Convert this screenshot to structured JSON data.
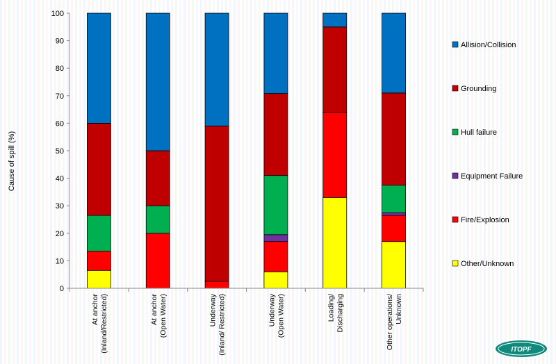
{
  "chart_data": {
    "type": "bar",
    "stacked": true,
    "ylabel": "Cause of spill (%)",
    "xlabel": "",
    "ylim": [
      0,
      100
    ],
    "yticks": [
      0,
      10,
      20,
      30,
      40,
      50,
      60,
      70,
      80,
      90,
      100
    ],
    "grid": false,
    "legend_position": "right",
    "categories": [
      [
        "At anchor",
        "(Inland/Restricted)"
      ],
      [
        "At anchor",
        "(Open Water)"
      ],
      [
        "Underway",
        "(Inland/ Restricted)"
      ],
      [
        "Underway",
        "(Open Water)"
      ],
      [
        "Loading/",
        "Discharging"
      ],
      [
        "Other operations/",
        "Unknown"
      ]
    ],
    "series": [
      {
        "name": "Other/Unknown",
        "color": "#ffff00",
        "values": [
          6.5,
          0,
          0,
          6,
          33,
          17
        ]
      },
      {
        "name": "Fire/Explosion",
        "color": "#ff0000",
        "values": [
          7,
          20,
          2.5,
          11,
          31,
          9.5
        ]
      },
      {
        "name": "Equipment Failure",
        "color": "#7030a0",
        "values": [
          0,
          0,
          0,
          2.5,
          0,
          1
        ]
      },
      {
        "name": "Hull failure",
        "color": "#00b050",
        "values": [
          13,
          10,
          0,
          21.5,
          0,
          10
        ]
      },
      {
        "name": "Grounding",
        "color": "#c00000",
        "values": [
          33.5,
          20,
          56.5,
          29.8,
          31,
          33.5
        ]
      },
      {
        "name": "Allision/Collision",
        "color": "#0070c0",
        "values": [
          40,
          50,
          41,
          29.2,
          5,
          29
        ]
      }
    ],
    "legend_order": [
      "Allision/Collision",
      "Grounding",
      "Hull failure",
      "Equipment Failure",
      "Fire/Explosion",
      "Other/Unknown"
    ]
  },
  "logo": {
    "text": "ITOPF"
  }
}
